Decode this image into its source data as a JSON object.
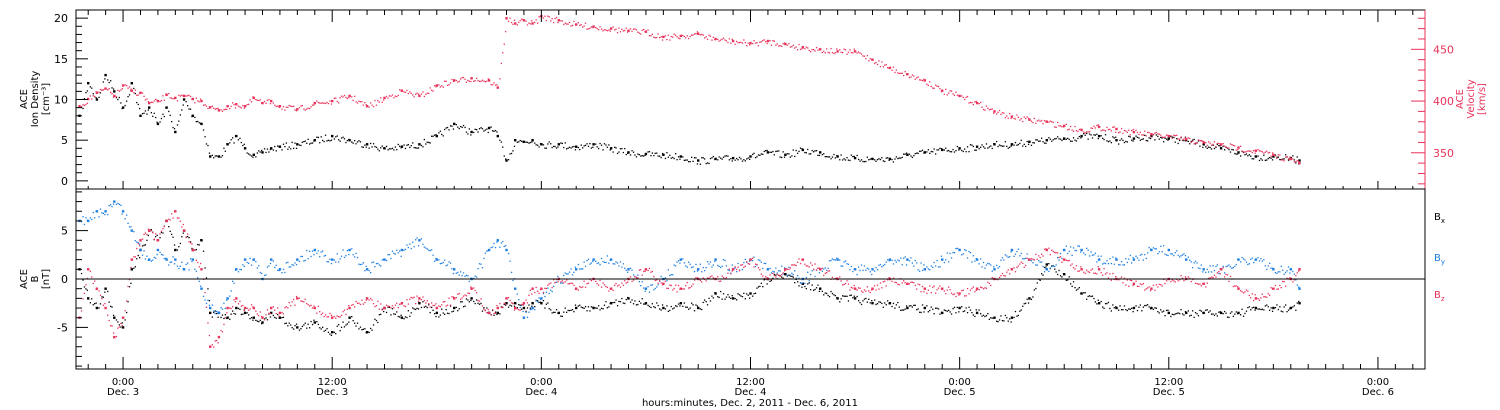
{
  "colors": {
    "density": "#000000",
    "velocity": "#e8325a",
    "bx": "#000000",
    "by": "#1f7fe0",
    "bz": "#e8325a",
    "frame": "#000000"
  },
  "figure": {
    "xlabel": "hours:minutes, Dec.  2, 2011 - Dec.  6, 2011",
    "time_ticks": [
      {
        "t": 3,
        "time": "0:00",
        "date": "Dec. 3"
      },
      {
        "t": 15,
        "time": "12:00",
        "date": "Dec. 3"
      },
      {
        "t": 27,
        "time": "0:00",
        "date": "Dec. 4"
      },
      {
        "t": 39,
        "time": "12:00",
        "date": "Dec. 4"
      },
      {
        "t": 51,
        "time": "0:00",
        "date": "Dec. 5"
      },
      {
        "t": 63,
        "time": "12:00",
        "date": "Dec. 5"
      },
      {
        "t": 75,
        "time": "0:00",
        "date": "Dec. 6"
      }
    ]
  },
  "top_panel": {
    "left_label": [
      "ACE",
      "Ion Density",
      "[cm⁻³]"
    ],
    "right_label": [
      "ACE",
      "Velocity",
      "[km/s]"
    ]
  },
  "bottom_panel": {
    "left_label": [
      "ACE",
      "B",
      "[nT]"
    ],
    "legend": [
      {
        "key": "bx",
        "main": "B",
        "sub": "x"
      },
      {
        "key": "by",
        "main": "B",
        "sub": "y"
      },
      {
        "key": "bz",
        "main": "B",
        "sub": "z"
      }
    ]
  },
  "chart_data": [
    {
      "type": "scatter",
      "title": "",
      "xlabel": "hours:minutes, Dec.  2, 2011 - Dec.  6, 2011",
      "x_unit": "hours since Dec. 2, 2011 00:00",
      "xlim": [
        0.3,
        77.7
      ],
      "ylim_left": [
        -1,
        21
      ],
      "yticks_left": [
        0,
        5,
        10,
        15,
        20
      ],
      "ylim_right": [
        315,
        488
      ],
      "yticks_right": [
        350,
        400,
        450
      ],
      "grid": false,
      "series": [
        {
          "key": "density",
          "name": "Ion Density",
          "axis": "left",
          "x": [
            0.5,
            1,
            1.5,
            2,
            2.5,
            3,
            3.5,
            4,
            4.5,
            5,
            5.5,
            6,
            6.5,
            7,
            7.5,
            8,
            8.5,
            9,
            9.5,
            10,
            10.5,
            11,
            11.5,
            12,
            13,
            14,
            15,
            16,
            17,
            18,
            19,
            20,
            21,
            22,
            23,
            24,
            24.5,
            25,
            25.5,
            26,
            26.5,
            27,
            28,
            29,
            30,
            31,
            32,
            33,
            34,
            35,
            36,
            37,
            38,
            39,
            40,
            41,
            42,
            43,
            44,
            45,
            46,
            47,
            48,
            49,
            50,
            51,
            52,
            53,
            54,
            55,
            56,
            57,
            58,
            59,
            60,
            61,
            62,
            63,
            64,
            65,
            66,
            67,
            68,
            69,
            70,
            70.5
          ],
          "y": [
            8,
            12,
            10,
            13,
            11,
            9,
            12,
            8,
            9,
            7,
            9,
            6,
            10,
            8,
            7,
            3,
            3,
            4.5,
            5.5,
            4,
            3.2,
            3.5,
            4,
            4.2,
            4.5,
            5,
            5.5,
            5,
            4.5,
            4,
            4.2,
            4.5,
            5.5,
            7,
            6,
            6.5,
            5.5,
            2.5,
            5,
            4.8,
            5,
            4.5,
            4.5,
            4.2,
            4.5,
            4,
            3.5,
            3.3,
            3.2,
            3,
            2.5,
            2.7,
            2.8,
            3,
            3.5,
            3.2,
            3.8,
            3.5,
            3,
            2.8,
            2.7,
            2.7,
            3.2,
            3.5,
            3.8,
            4,
            4.2,
            4.5,
            4.5,
            4.8,
            5,
            5.2,
            5.5,
            5.5,
            5,
            5.2,
            5.5,
            5.2,
            5,
            4.5,
            4,
            3.5,
            3,
            3,
            2.8,
            2.5
          ]
        },
        {
          "key": "velocity",
          "name": "Velocity",
          "axis": "right",
          "x": [
            0.5,
            1,
            1.5,
            2,
            2.5,
            3,
            3.5,
            4,
            4.5,
            5,
            5.5,
            6,
            6.5,
            7,
            7.5,
            8,
            8.5,
            9,
            9.5,
            10,
            10.5,
            11,
            11.5,
            12,
            13,
            14,
            15,
            16,
            17,
            18,
            19,
            20,
            21,
            22,
            23,
            24,
            24.5,
            25,
            25.5,
            26,
            26.5,
            27,
            28,
            29,
            30,
            31,
            32,
            33,
            34,
            35,
            36,
            37,
            38,
            39,
            40,
            41,
            42,
            43,
            44,
            45,
            46,
            47,
            48,
            49,
            50,
            51,
            52,
            53,
            54,
            55,
            56,
            57,
            58,
            59,
            60,
            61,
            62,
            63,
            64,
            65,
            66,
            67,
            68,
            69,
            70,
            70.5
          ],
          "y": [
            395,
            402,
            408,
            412,
            405,
            415,
            410,
            408,
            398,
            400,
            406,
            403,
            405,
            402,
            400,
            394,
            391,
            395,
            397,
            395,
            403,
            398,
            400,
            395,
            392,
            398,
            400,
            405,
            395,
            403,
            410,
            405,
            415,
            420,
            422,
            420,
            413,
            480,
            475,
            478,
            475,
            482,
            478,
            474,
            472,
            470,
            468,
            467,
            462,
            463,
            465,
            460,
            458,
            456,
            458,
            455,
            452,
            450,
            448,
            448,
            440,
            432,
            426,
            420,
            410,
            405,
            398,
            390,
            385,
            382,
            380,
            376,
            372,
            375,
            373,
            370,
            368,
            366,
            363,
            360,
            358,
            355,
            352,
            348,
            344,
            340
          ]
        }
      ]
    },
    {
      "type": "scatter",
      "title": "",
      "xlabel": "hours:minutes, Dec.  2, 2011 - Dec.  6, 2011",
      "x_unit": "hours since Dec. 2, 2011 00:00",
      "xlim": [
        0.3,
        77.7
      ],
      "ylim": [
        -9.3,
        9.3
      ],
      "yticks": [
        -5,
        0,
        5
      ],
      "zero_line": true,
      "legend_placement": "right",
      "grid": false,
      "series": [
        {
          "key": "bx",
          "name": "Bx",
          "x": [
            0.5,
            1,
            1.5,
            2,
            2.5,
            3,
            3.5,
            4,
            4.5,
            5,
            5.5,
            6,
            6.5,
            7,
            7.5,
            8,
            8.5,
            9,
            9.5,
            10,
            10.5,
            11,
            11.5,
            12,
            13,
            14,
            15,
            16,
            17,
            18,
            19,
            20,
            21,
            22,
            23,
            24,
            24.5,
            25,
            25.5,
            26,
            26.5,
            27,
            28,
            29,
            30,
            31,
            32,
            33,
            34,
            35,
            36,
            37,
            38,
            39,
            40,
            41,
            42,
            43,
            44,
            45,
            46,
            47,
            48,
            49,
            50,
            51,
            52,
            53,
            54,
            55,
            56,
            57,
            58,
            59,
            60,
            61,
            62,
            63,
            64,
            65,
            66,
            67,
            68,
            69,
            70,
            70.5
          ],
          "y": [
            1,
            -2,
            -3,
            -1,
            -4,
            -5,
            1,
            3,
            5,
            4,
            6,
            3,
            5,
            3,
            4,
            -3.5,
            -3.5,
            -4,
            -3,
            -3.5,
            -4,
            -4.5,
            -3.5,
            -4,
            -5,
            -4.5,
            -5.5,
            -4,
            -5.5,
            -3,
            -4,
            -2.5,
            -3.5,
            -3,
            -2,
            -3.5,
            -3.5,
            -2.5,
            -2.5,
            -3,
            -2.5,
            -2.5,
            -3.5,
            -3,
            -3,
            -2.5,
            -2,
            -2.5,
            -3,
            -2.5,
            -3,
            -1.5,
            -2,
            -1.5,
            0,
            0.5,
            -0.5,
            -1,
            -2,
            -2,
            -2.5,
            -2.5,
            -3,
            -3,
            -3.5,
            -3,
            -3.5,
            -4,
            -4,
            -2,
            1.5,
            0.5,
            -1.5,
            -2.5,
            -3,
            -3,
            -3,
            -3.5,
            -3.5,
            -3.5,
            -3.5,
            -3.5,
            -3,
            -3,
            -3,
            -2.5
          ]
        },
        {
          "key": "by",
          "name": "By",
          "x": [
            0.5,
            1,
            1.5,
            2,
            2.5,
            3,
            3.5,
            4,
            4.5,
            5,
            5.5,
            6,
            6.5,
            7,
            7.5,
            8,
            8.5,
            9,
            9.5,
            10,
            10.5,
            11,
            11.5,
            12,
            13,
            14,
            15,
            16,
            17,
            18,
            19,
            20,
            21,
            22,
            23,
            24,
            24.5,
            25,
            25.5,
            26,
            26.5,
            27,
            28,
            29,
            30,
            31,
            32,
            33,
            34,
            35,
            36,
            37,
            38,
            39,
            40,
            41,
            42,
            43,
            44,
            45,
            46,
            47,
            48,
            49,
            50,
            51,
            52,
            53,
            54,
            55,
            56,
            57,
            58,
            59,
            60,
            61,
            62,
            63,
            64,
            65,
            66,
            67,
            68,
            69,
            70,
            70.5
          ],
          "y": [
            6,
            6,
            7,
            7,
            8,
            7,
            5,
            3,
            2,
            3,
            2,
            2,
            1,
            2,
            -1,
            -3,
            -3.5,
            -2,
            1,
            2,
            2,
            0,
            2,
            1,
            2,
            3,
            2,
            3,
            1,
            2,
            3,
            4,
            2,
            1,
            0,
            3,
            4,
            3,
            -1,
            -4,
            -3,
            -2,
            0,
            1,
            2,
            2,
            1,
            -1,
            0,
            2,
            1,
            2,
            1,
            2,
            1,
            1,
            0,
            1,
            2,
            1,
            1,
            2,
            2,
            1,
            2,
            3,
            2,
            1,
            3,
            2,
            1,
            3,
            3,
            2,
            2,
            2,
            3,
            3,
            2,
            1,
            1,
            2,
            2,
            1,
            1,
            -1
          ]
        },
        {
          "key": "bz",
          "name": "Bz",
          "x": [
            0.5,
            1,
            1.5,
            2,
            2.5,
            3,
            3.5,
            4,
            4.5,
            5,
            5.5,
            6,
            6.5,
            7,
            7.5,
            8,
            8.5,
            9,
            9.5,
            10,
            10.5,
            11,
            11.5,
            12,
            13,
            14,
            15,
            16,
            17,
            18,
            19,
            20,
            21,
            22,
            23,
            24,
            24.5,
            25,
            25.5,
            26,
            26.5,
            27,
            28,
            29,
            30,
            31,
            32,
            33,
            34,
            35,
            36,
            37,
            38,
            39,
            40,
            41,
            42,
            43,
            44,
            45,
            46,
            47,
            48,
            49,
            50,
            51,
            52,
            53,
            54,
            55,
            56,
            57,
            58,
            59,
            60,
            61,
            62,
            63,
            64,
            65,
            66,
            67,
            68,
            69,
            70,
            70.5
          ],
          "y": [
            -4,
            1,
            -1,
            -3,
            -6,
            -4,
            2,
            4,
            5,
            4,
            6,
            7,
            5,
            3,
            1,
            -7,
            -6,
            -3,
            -2,
            -3,
            -3,
            -4,
            -3,
            -3.5,
            -2,
            -3,
            -4,
            -3,
            -2,
            -3,
            -2.5,
            -2,
            -3,
            -2,
            -1,
            -3.5,
            -3,
            -2,
            -3,
            -2.5,
            -1,
            -1,
            0,
            -1,
            0,
            -1,
            0,
            1,
            -0.5,
            -1,
            0,
            0,
            1,
            2,
            0,
            1,
            2,
            1,
            0,
            -1,
            -1,
            0,
            -0.5,
            -1,
            -1,
            -1.5,
            -1,
            0,
            1,
            2,
            3,
            2,
            1,
            1,
            0,
            -0.5,
            -1,
            0,
            0,
            -0.5,
            1,
            -1,
            -2,
            -1,
            0,
            1
          ]
        }
      ]
    }
  ]
}
